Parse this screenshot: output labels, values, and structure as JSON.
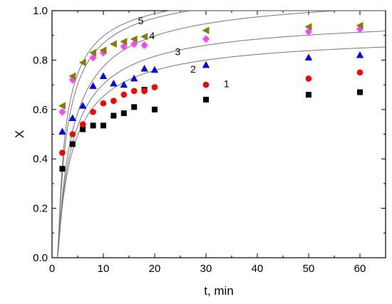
{
  "chart_data": {
    "type": "scatter",
    "xlabel": "t, min",
    "ylabel": "X",
    "xlim": [
      0,
      65
    ],
    "ylim": [
      0,
      1.0
    ],
    "x_ticks": [
      0,
      10,
      20,
      30,
      40,
      50,
      60
    ],
    "y_ticks": [
      0.0,
      0.2,
      0.4,
      0.6,
      0.8,
      1.0
    ],
    "x_tick_labels": [
      "0",
      "10",
      "20",
      "30",
      "40",
      "50",
      "60"
    ],
    "y_tick_labels": [
      "0.0",
      "0.2",
      "0.4",
      "0.6",
      "0.8",
      "1.0"
    ],
    "grid": false,
    "fit_curve_color": "#777777",
    "series": [
      {
        "label": "1",
        "marker": "square",
        "color": "#000000",
        "x": [
          2,
          4,
          6,
          8,
          10,
          12,
          14,
          16,
          18,
          20,
          30,
          50,
          60
        ],
        "y": [
          0.36,
          0.46,
          0.52,
          0.535,
          0.535,
          0.575,
          0.585,
          0.61,
          0.68,
          0.6,
          0.64,
          0.66,
          0.67
        ],
        "fit": {
          "a": 0.2,
          "b": 0.82,
          "k": 6.0
        }
      },
      {
        "label": "2",
        "marker": "circle",
        "color": "#ff0000",
        "x": [
          2,
          4,
          6,
          8,
          10,
          12,
          14,
          16,
          18,
          20,
          30,
          50,
          60
        ],
        "y": [
          0.425,
          0.5,
          0.54,
          0.59,
          0.625,
          0.635,
          0.66,
          0.675,
          0.675,
          0.69,
          0.7,
          0.725,
          0.75
        ],
        "fit": {
          "a": 0.22,
          "b": 0.88,
          "k": 6.0
        }
      },
      {
        "label": "3",
        "marker": "triangle",
        "color": "#0000ff",
        "x": [
          2,
          4,
          6,
          8,
          10,
          12,
          14,
          16,
          18,
          20,
          30,
          50,
          60
        ],
        "y": [
          0.51,
          0.565,
          0.615,
          0.695,
          0.735,
          0.705,
          0.7,
          0.725,
          0.765,
          0.76,
          0.78,
          0.81,
          0.82
        ],
        "fit": {
          "a": 0.24,
          "b": 0.97,
          "k": 6.0
        }
      },
      {
        "label": "4",
        "marker": "diamond",
        "color": "#ff44ff",
        "x": [
          2,
          4,
          8,
          10,
          14,
          16,
          18,
          30,
          50,
          60
        ],
        "y": [
          0.59,
          0.72,
          0.81,
          0.83,
          0.855,
          0.865,
          0.86,
          0.885,
          0.915,
          0.925
        ],
        "fit": {
          "a": 0.26,
          "b": 1.0,
          "k": 4.0
        }
      },
      {
        "label": "5",
        "marker": "triangle-left",
        "color": "#808000",
        "x": [
          2,
          4,
          6,
          8,
          10,
          12,
          14,
          16,
          18,
          30,
          50,
          60
        ],
        "y": [
          0.615,
          0.735,
          0.79,
          0.83,
          0.84,
          0.865,
          0.875,
          0.885,
          0.895,
          0.92,
          0.935,
          0.94
        ],
        "fit": {
          "a": 0.27,
          "b": 1.0,
          "k": 3.3
        }
      }
    ]
  }
}
